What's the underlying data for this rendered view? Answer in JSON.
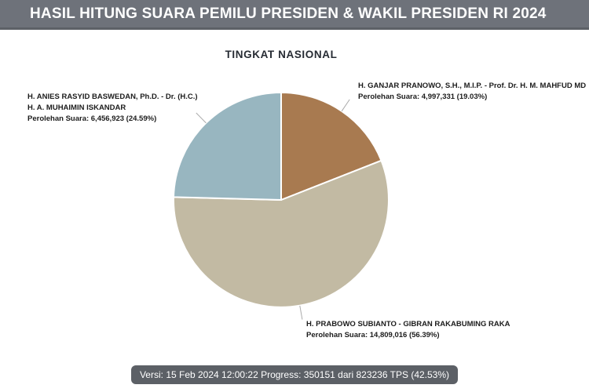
{
  "header": {
    "title": "HASIL HITUNG SUARA PEMILU PRESIDEN & WAKIL PRESIDEN RI 2024"
  },
  "chart_data": {
    "type": "pie",
    "title": "TINGKAT NASIONAL",
    "start_angle_deg": 0,
    "direction": "clockwise",
    "legend_position": "callout-labels",
    "slices": [
      {
        "id": "ganjar-mahfud",
        "name": "H. GANJAR PRANOWO, S.H., M.I.P. - Prof. Dr. H. M. MAHFUD MD",
        "votes": 4997331,
        "pct": 19.03,
        "votes_label": "Perolehan Suara: 4,997,331 (19.03%)",
        "color": "#a87a50"
      },
      {
        "id": "prabowo-gibran",
        "name": "H. PRABOWO SUBIANTO - GIBRAN RAKABUMING RAKA",
        "votes": 14809016,
        "pct": 56.39,
        "votes_label": "Perolehan Suara: 14,809,016 (56.39%)",
        "color": "#c2baa3"
      },
      {
        "id": "anies-muhaimin",
        "name": "H. ANIES RASYID BASWEDAN, Ph.D. - Dr. (H.C.) H. A. MUHAIMIN ISKANDAR",
        "votes": 6456923,
        "pct": 24.59,
        "votes_label": "Perolehan Suara: 6,456,923 (24.59%)",
        "color": "#98b6c0"
      }
    ]
  },
  "footer": {
    "version_text": "Versi: 15 Feb 2024 12:00:22 Progress: 350151 dari 823236 TPS (42.53%)"
  },
  "colors": {
    "header_bg": "#6e727a",
    "header_border": "#5d6167",
    "badge_bg": "#5c6066",
    "leader_line": "#aaaaaa",
    "slice_divider": "#ffffff"
  }
}
